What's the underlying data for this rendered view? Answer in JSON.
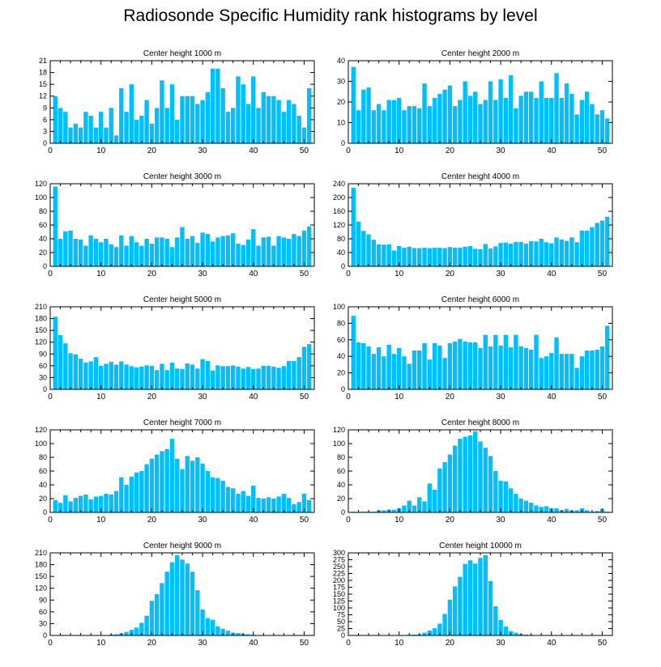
{
  "title": "Radiosonde Specific Humidity rank histograms by level",
  "colors": {
    "bar": "#00bfff",
    "axis": "#000000"
  },
  "chart_data": [
    {
      "type": "bar",
      "title": "Center height 1000 m",
      "xlim": [
        0,
        52
      ],
      "ylim": [
        0,
        21
      ],
      "xticks": [
        0,
        10,
        20,
        30,
        40,
        50
      ],
      "yticks": [
        0,
        3,
        6,
        9,
        12,
        15,
        18,
        21
      ],
      "x": [
        1,
        2,
        3,
        4,
        5,
        6,
        7,
        8,
        9,
        10,
        11,
        12,
        13,
        14,
        15,
        16,
        17,
        18,
        19,
        20,
        21,
        22,
        23,
        24,
        25,
        26,
        27,
        28,
        29,
        30,
        31,
        32,
        33,
        34,
        35,
        36,
        37,
        38,
        39,
        40,
        41,
        42,
        43,
        44,
        45,
        46,
        47,
        48,
        49,
        50,
        51
      ],
      "values": [
        12,
        9,
        8,
        4,
        5,
        4,
        8,
        7,
        4,
        8,
        4,
        9,
        2,
        14,
        8,
        15,
        6,
        7,
        11,
        5,
        9,
        16,
        9,
        15,
        6,
        12,
        12,
        12,
        10,
        11,
        13,
        19,
        19,
        14,
        8,
        9,
        17,
        15,
        10,
        17,
        9,
        13,
        12,
        12,
        11,
        8,
        11,
        10,
        7,
        4,
        14
      ]
    },
    {
      "type": "bar",
      "title": "Center height 2000 m",
      "xlim": [
        0,
        52
      ],
      "ylim": [
        0,
        40
      ],
      "xticks": [
        0,
        10,
        20,
        30,
        40,
        50
      ],
      "yticks": [
        0,
        10,
        20,
        30,
        40
      ],
      "x": [
        1,
        2,
        3,
        4,
        5,
        6,
        7,
        8,
        9,
        10,
        11,
        12,
        13,
        14,
        15,
        16,
        17,
        18,
        19,
        20,
        21,
        22,
        23,
        24,
        25,
        26,
        27,
        28,
        29,
        30,
        31,
        32,
        33,
        34,
        35,
        36,
        37,
        38,
        39,
        40,
        41,
        42,
        43,
        44,
        45,
        46,
        47,
        48,
        49,
        50,
        51
      ],
      "values": [
        37,
        16,
        26,
        27,
        16,
        19,
        16,
        21,
        21,
        22,
        16,
        18,
        18,
        17,
        29,
        18,
        22,
        24,
        26,
        28,
        18,
        21,
        30,
        23,
        25,
        19,
        21,
        30,
        21,
        31,
        22,
        33,
        17,
        23,
        25,
        25,
        22,
        30,
        22,
        22,
        34,
        22,
        29,
        24,
        14,
        21,
        25,
        19,
        14,
        16,
        12
      ]
    },
    {
      "type": "bar",
      "title": "Center height 3000 m",
      "xlim": [
        0,
        52
      ],
      "ylim": [
        0,
        120
      ],
      "xticks": [
        0,
        10,
        20,
        30,
        40,
        50
      ],
      "yticks": [
        0,
        20,
        40,
        60,
        80,
        100,
        120
      ],
      "x": [
        1,
        2,
        3,
        4,
        5,
        6,
        7,
        8,
        9,
        10,
        11,
        12,
        13,
        14,
        15,
        16,
        17,
        18,
        19,
        20,
        21,
        22,
        23,
        24,
        25,
        26,
        27,
        28,
        29,
        30,
        31,
        32,
        33,
        34,
        35,
        36,
        37,
        38,
        39,
        40,
        41,
        42,
        43,
        44,
        45,
        46,
        47,
        48,
        49,
        50,
        51
      ],
      "values": [
        116,
        40,
        51,
        52,
        40,
        39,
        30,
        45,
        40,
        35,
        40,
        32,
        28,
        45,
        30,
        44,
        35,
        30,
        40,
        33,
        42,
        42,
        40,
        28,
        42,
        57,
        40,
        44,
        34,
        49,
        47,
        36,
        42,
        44,
        45,
        48,
        33,
        31,
        39,
        54,
        30,
        42,
        43,
        30,
        44,
        42,
        40,
        47,
        44,
        52,
        58
      ]
    },
    {
      "type": "bar",
      "title": "Center height 4000 m",
      "xlim": [
        0,
        52
      ],
      "ylim": [
        0,
        240
      ],
      "xticks": [
        0,
        10,
        20,
        30,
        40,
        50
      ],
      "yticks": [
        0,
        40,
        80,
        120,
        160,
        200,
        240
      ],
      "x": [
        1,
        2,
        3,
        4,
        5,
        6,
        7,
        8,
        9,
        10,
        11,
        12,
        13,
        14,
        15,
        16,
        17,
        18,
        19,
        20,
        21,
        22,
        23,
        24,
        25,
        26,
        27,
        28,
        29,
        30,
        31,
        32,
        33,
        34,
        35,
        36,
        37,
        38,
        39,
        40,
        41,
        42,
        43,
        44,
        45,
        46,
        47,
        48,
        49,
        50,
        51
      ],
      "values": [
        228,
        130,
        103,
        93,
        77,
        64,
        63,
        64,
        46,
        59,
        54,
        57,
        53,
        53,
        54,
        53,
        54,
        54,
        53,
        56,
        54,
        54,
        57,
        59,
        51,
        50,
        65,
        52,
        58,
        68,
        69,
        66,
        71,
        71,
        66,
        73,
        72,
        80,
        70,
        67,
        84,
        78,
        74,
        84,
        70,
        104,
        104,
        114,
        126,
        133,
        144
      ]
    },
    {
      "type": "bar",
      "title": "Center height 5000 m",
      "xlim": [
        0,
        52
      ],
      "ylim": [
        0,
        210
      ],
      "xticks": [
        0,
        10,
        20,
        30,
        40,
        50
      ],
      "yticks": [
        0,
        30,
        60,
        90,
        120,
        150,
        180,
        210
      ],
      "x": [
        1,
        2,
        3,
        4,
        5,
        6,
        7,
        8,
        9,
        10,
        11,
        12,
        13,
        14,
        15,
        16,
        17,
        18,
        19,
        20,
        21,
        22,
        23,
        24,
        25,
        26,
        27,
        28,
        29,
        30,
        31,
        32,
        33,
        34,
        35,
        36,
        37,
        38,
        39,
        40,
        41,
        42,
        43,
        44,
        45,
        46,
        47,
        48,
        49,
        50,
        51
      ],
      "values": [
        185,
        138,
        117,
        92,
        89,
        78,
        68,
        71,
        82,
        60,
        65,
        70,
        63,
        71,
        63,
        59,
        56,
        58,
        61,
        60,
        49,
        65,
        49,
        68,
        53,
        52,
        66,
        63,
        53,
        77,
        72,
        48,
        61,
        59,
        59,
        61,
        58,
        53,
        57,
        52,
        53,
        60,
        60,
        58,
        55,
        59,
        72,
        72,
        82,
        108,
        115
      ]
    },
    {
      "type": "bar",
      "title": "Center height 6000 m",
      "xlim": [
        0,
        52
      ],
      "ylim": [
        0,
        100
      ],
      "xticks": [
        0,
        10,
        20,
        30,
        40,
        50
      ],
      "yticks": [
        0,
        20,
        40,
        60,
        80,
        100
      ],
      "x": [
        1,
        2,
        3,
        4,
        5,
        6,
        7,
        8,
        9,
        10,
        11,
        12,
        13,
        14,
        15,
        16,
        17,
        18,
        19,
        20,
        21,
        22,
        23,
        24,
        25,
        26,
        27,
        28,
        29,
        30,
        31,
        32,
        33,
        34,
        35,
        36,
        37,
        38,
        39,
        40,
        41,
        42,
        43,
        44,
        45,
        46,
        47,
        48,
        49,
        50,
        51
      ],
      "values": [
        89,
        57,
        56,
        52,
        43,
        51,
        40,
        54,
        43,
        50,
        40,
        31,
        47,
        47,
        56,
        36,
        56,
        53,
        38,
        56,
        58,
        61,
        58,
        57,
        57,
        50,
        66,
        52,
        66,
        53,
        66,
        51,
        66,
        52,
        50,
        48,
        66,
        38,
        40,
        44,
        63,
        43,
        43,
        43,
        26,
        40,
        47,
        47,
        48,
        52,
        77
      ]
    },
    {
      "type": "bar",
      "title": "Center height 7000 m",
      "xlim": [
        0,
        52
      ],
      "ylim": [
        0,
        120
      ],
      "xticks": [
        0,
        10,
        20,
        30,
        40,
        50
      ],
      "yticks": [
        0,
        20,
        40,
        60,
        80,
        100,
        120
      ],
      "x": [
        1,
        2,
        3,
        4,
        5,
        6,
        7,
        8,
        9,
        10,
        11,
        12,
        13,
        14,
        15,
        16,
        17,
        18,
        19,
        20,
        21,
        22,
        23,
        24,
        25,
        26,
        27,
        28,
        29,
        30,
        31,
        32,
        33,
        34,
        35,
        36,
        37,
        38,
        39,
        40,
        41,
        42,
        43,
        44,
        45,
        46,
        47,
        48,
        49,
        50,
        51
      ],
      "values": [
        18,
        14,
        25,
        16,
        21,
        24,
        26,
        19,
        23,
        24,
        27,
        26,
        31,
        51,
        40,
        52,
        58,
        60,
        70,
        78,
        84,
        89,
        92,
        107,
        78,
        63,
        82,
        75,
        80,
        71,
        60,
        51,
        50,
        46,
        37,
        35,
        27,
        31,
        24,
        39,
        21,
        20,
        22,
        20,
        23,
        27,
        21,
        12,
        15,
        27,
        18
      ]
    },
    {
      "type": "bar",
      "title": "Center height 8000 m",
      "xlim": [
        0,
        52
      ],
      "ylim": [
        0,
        120
      ],
      "xticks": [
        0,
        10,
        20,
        30,
        40,
        50
      ],
      "yticks": [
        0,
        20,
        40,
        60,
        80,
        100,
        120
      ],
      "x": [
        1,
        2,
        3,
        4,
        5,
        6,
        7,
        8,
        9,
        10,
        11,
        12,
        13,
        14,
        15,
        16,
        17,
        18,
        19,
        20,
        21,
        22,
        23,
        24,
        25,
        26,
        27,
        28,
        29,
        30,
        31,
        32,
        33,
        34,
        35,
        36,
        37,
        38,
        39,
        40,
        41,
        42,
        43,
        44,
        45,
        46,
        47,
        48,
        49,
        50,
        51
      ],
      "values": [
        1,
        0,
        1,
        1,
        1,
        3,
        3,
        4,
        4,
        6,
        10,
        17,
        10,
        22,
        16,
        42,
        33,
        64,
        73,
        84,
        97,
        107,
        110,
        112,
        118,
        103,
        94,
        82,
        60,
        46,
        45,
        35,
        27,
        20,
        17,
        14,
        10,
        8,
        9,
        6,
        6,
        3,
        5,
        3,
        3,
        6,
        3,
        1,
        2,
        5,
        1
      ]
    },
    {
      "type": "bar",
      "title": "Center height 9000 m",
      "xlim": [
        0,
        52
      ],
      "ylim": [
        0,
        210
      ],
      "xticks": [
        0,
        10,
        20,
        30,
        40,
        50
      ],
      "yticks": [
        0,
        30,
        60,
        90,
        120,
        150,
        180,
        210
      ],
      "x": [
        1,
        2,
        3,
        4,
        5,
        6,
        7,
        8,
        9,
        10,
        11,
        12,
        13,
        14,
        15,
        16,
        17,
        18,
        19,
        20,
        21,
        22,
        23,
        24,
        25,
        26,
        27,
        28,
        29,
        30,
        31,
        32,
        33,
        34,
        35,
        36,
        37,
        38,
        39,
        40,
        41,
        42,
        43,
        44,
        45,
        46,
        47,
        48,
        49,
        50,
        51
      ],
      "values": [
        0,
        0,
        0,
        0,
        0,
        0,
        1,
        0,
        1,
        1,
        1,
        2,
        3,
        5,
        9,
        14,
        20,
        32,
        50,
        88,
        105,
        133,
        162,
        186,
        204,
        193,
        183,
        162,
        115,
        66,
        44,
        40,
        23,
        17,
        12,
        7,
        6,
        4,
        3,
        2,
        1,
        1,
        1,
        0,
        0,
        0,
        0,
        0,
        0,
        0,
        0
      ]
    },
    {
      "type": "bar",
      "title": "Center height 10000 m",
      "xlim": [
        0,
        52
      ],
      "ylim": [
        0,
        300
      ],
      "xticks": [
        0,
        10,
        20,
        30,
        40,
        50
      ],
      "yticks": [
        0,
        25,
        50,
        75,
        100,
        125,
        150,
        175,
        200,
        225,
        250,
        275,
        300
      ],
      "x": [
        1,
        2,
        3,
        4,
        5,
        6,
        7,
        8,
        9,
        10,
        11,
        12,
        13,
        14,
        15,
        16,
        17,
        18,
        19,
        20,
        21,
        22,
        23,
        24,
        25,
        26,
        27,
        28,
        29,
        30,
        31,
        32,
        33,
        34,
        35,
        36,
        37,
        38,
        39,
        40,
        41,
        42,
        43,
        44,
        45,
        46,
        47,
        48,
        49,
        50,
        51
      ],
      "values": [
        0,
        0,
        0,
        0,
        0,
        0,
        0,
        0,
        1,
        0,
        1,
        2,
        3,
        4,
        10,
        18,
        26,
        43,
        78,
        130,
        178,
        213,
        260,
        273,
        261,
        282,
        292,
        198,
        106,
        56,
        32,
        16,
        10,
        5,
        3,
        2,
        1,
        1,
        0,
        0,
        0,
        0,
        0,
        0,
        0,
        0,
        0,
        0,
        0,
        0,
        0
      ]
    }
  ]
}
